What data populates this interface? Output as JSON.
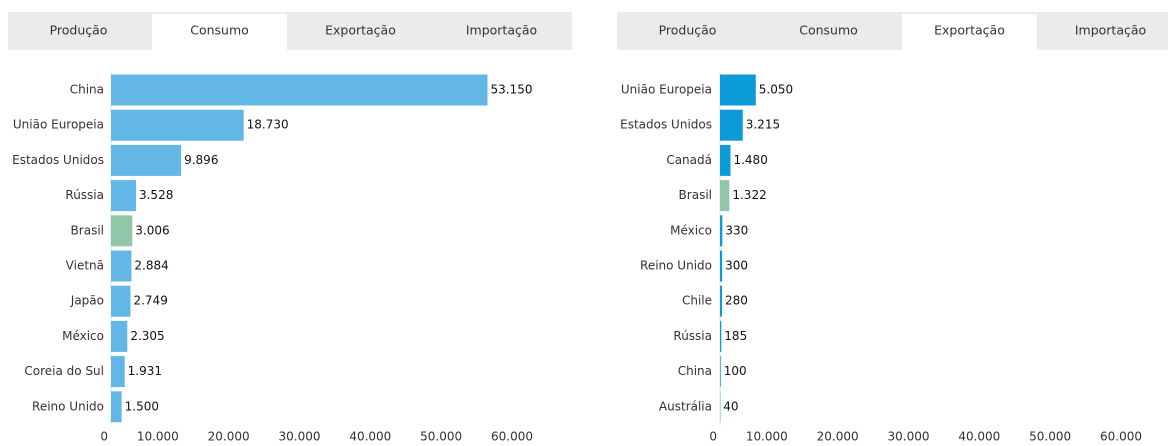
{
  "chart_data": [
    {
      "type": "hbar",
      "tabs": [
        "Produção",
        "Consumo",
        "Exportação",
        "Importação"
      ],
      "active_tab": 1,
      "categories": [
        "China",
        "União Europeia",
        "Estados Unidos",
        "Rússia",
        "Brasil",
        "Vietnã",
        "Japão",
        "México",
        "Coreia do Sul",
        "Reino Unido"
      ],
      "values": [
        53150,
        18730,
        9896,
        3528,
        3006,
        2884,
        2749,
        2305,
        1931,
        1500
      ],
      "value_labels": [
        "53.150",
        "18.730",
        "9.896",
        "3.528",
        "3.006",
        "2.884",
        "2.749",
        "2.305",
        "1.931",
        "1.500"
      ],
      "colors": [
        "#62b7e7",
        "#62b7e7",
        "#62b7e7",
        "#62b7e7",
        "#92c6a9",
        "#62b7e7",
        "#62b7e7",
        "#62b7e7",
        "#62b7e7",
        "#62b7e7"
      ],
      "xlim": [
        0,
        60000
      ],
      "xticks": [
        0,
        {
          "value": 10000,
          "label": "10.000"
        },
        {
          "value": 20000,
          "label": "20.000"
        },
        {
          "value": 30000,
          "label": "30.000"
        },
        {
          "value": 40000,
          "label": "40.000"
        },
        {
          "value": 50000,
          "label": "50.000"
        },
        {
          "value": 60000,
          "label": "60.000"
        }
      ]
    },
    {
      "type": "hbar",
      "tabs": [
        "Produção",
        "Consumo",
        "Exportação",
        "Importação"
      ],
      "active_tab": 2,
      "categories": [
        "União Europeia",
        "Estados Unidos",
        "Canadá",
        "Brasil",
        "México",
        "Reino Unido",
        "Chile",
        "Rússia",
        "China",
        "Austrália"
      ],
      "values": [
        5050,
        3215,
        1480,
        1322,
        330,
        300,
        280,
        185,
        100,
        40
      ],
      "value_labels": [
        "5.050",
        "3.215",
        "1.480",
        "1.322",
        "330",
        "300",
        "280",
        "185",
        "100",
        "40"
      ],
      "colors": [
        "#0b9bd9",
        "#0b9bd9",
        "#0b9bd9",
        "#92c6a9",
        "#0b9bd9",
        "#0b9bd9",
        "#0b9bd9",
        "#0b9bd9",
        "#0b9bd9",
        "#0b9bd9"
      ],
      "xlim": [
        0,
        60000
      ],
      "xticks": [
        0,
        {
          "value": 10000,
          "label": "10.000"
        },
        {
          "value": 20000,
          "label": "20.000"
        },
        {
          "value": 30000,
          "label": "30.000"
        },
        {
          "value": 40000,
          "label": "40.000"
        },
        {
          "value": 50000,
          "label": "50.000"
        },
        {
          "value": 60000,
          "label": "60.000"
        }
      ]
    }
  ]
}
